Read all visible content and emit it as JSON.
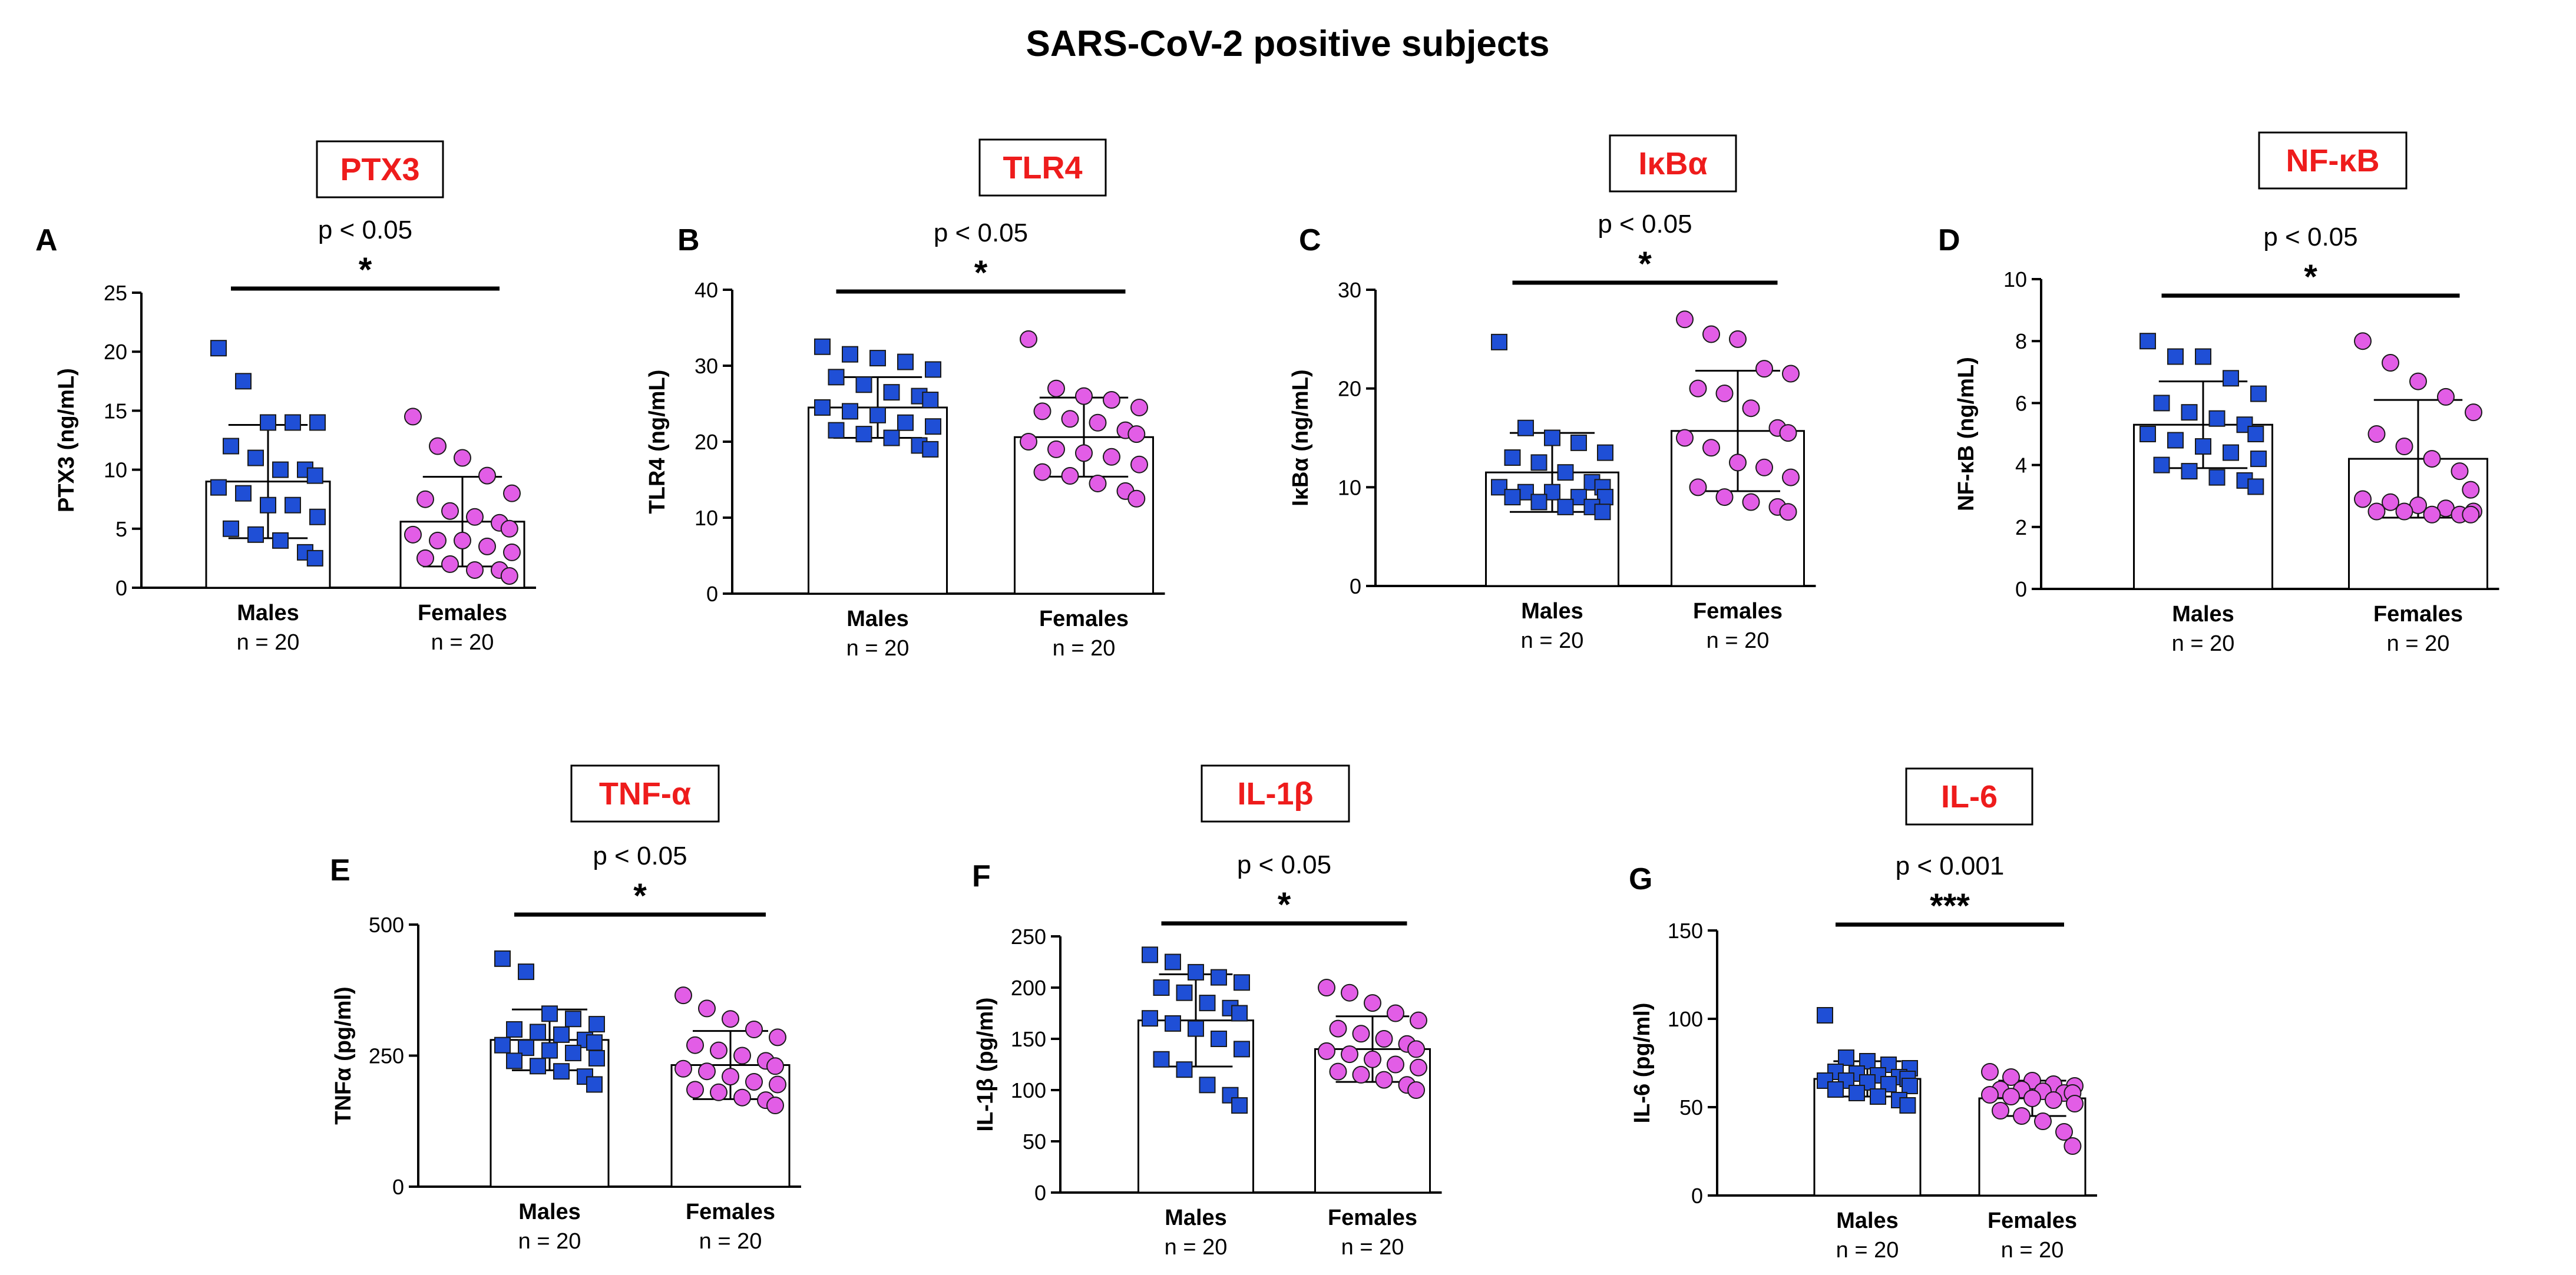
{
  "figure_title": "SARS-CoV-2 positive subjects",
  "colors": {
    "title_text": "#ee1c1c",
    "males_fill": "#1f4fd6",
    "females_fill": "#e25de6",
    "marker_edge": "#1a1a1a",
    "axis": "#000000"
  },
  "chart_data": [
    {
      "panel": "A",
      "type": "bar",
      "title": "PTX3",
      "ylabel": "PTX3 (ng/mL)",
      "ylim": [
        0,
        25
      ],
      "ticks": [
        0,
        5,
        10,
        15,
        20,
        25
      ],
      "categories": [
        "Males",
        "Females"
      ],
      "n_labels": [
        "n = 20",
        "n = 20"
      ],
      "means": [
        9.0,
        5.6
      ],
      "sd": [
        4.8,
        3.8
      ],
      "points": [
        [
          20.3,
          17.5,
          14.0,
          14.0,
          14.0,
          12.0,
          11.0,
          10.0,
          10.0,
          9.5,
          8.5,
          8.0,
          7.0,
          7.0,
          6.0,
          5.0,
          4.5,
          4.0,
          3.0,
          2.5
        ],
        [
          14.5,
          12.0,
          11.0,
          9.5,
          8.0,
          7.5,
          6.5,
          6.0,
          5.5,
          5.0,
          4.5,
          4.0,
          4.0,
          3.5,
          3.0,
          2.5,
          2.0,
          1.5,
          1.5,
          1.0
        ]
      ],
      "p_text": "p < 0.05",
      "stars": "*"
    },
    {
      "panel": "B",
      "type": "bar",
      "title": "TLR4",
      "ylabel": "TLR4 (ng/mL)",
      "ylim": [
        0,
        40
      ],
      "ticks": [
        0,
        10,
        20,
        30,
        40
      ],
      "categories": [
        "Males",
        "Females"
      ],
      "n_labels": [
        "n = 20",
        "n = 20"
      ],
      "means": [
        24.5,
        20.6
      ],
      "sd": [
        4.0,
        5.2
      ],
      "points": [
        [
          32.5,
          31.5,
          31.0,
          30.5,
          29.5,
          28.5,
          27.5,
          26.5,
          26.0,
          25.5,
          24.5,
          24.0,
          23.5,
          22.5,
          22.0,
          21.5,
          21.0,
          20.5,
          19.5,
          19.0
        ],
        [
          33.5,
          27.0,
          26.0,
          25.5,
          24.5,
          24.0,
          23.0,
          22.5,
          21.5,
          21.0,
          20.0,
          19.0,
          18.5,
          18.0,
          17.0,
          16.0,
          15.5,
          14.5,
          13.5,
          12.5
        ]
      ],
      "p_text": "p < 0.05",
      "stars": "*"
    },
    {
      "panel": "C",
      "type": "bar",
      "title": "IκBα",
      "ylabel": "IκBα (ng/mL)",
      "ylim": [
        0,
        30
      ],
      "ticks": [
        0,
        10,
        20,
        30
      ],
      "categories": [
        "Males",
        "Females"
      ],
      "n_labels": [
        "n = 20",
        "n = 20"
      ],
      "means": [
        11.5,
        15.7
      ],
      "sd": [
        4.0,
        6.1
      ],
      "points": [
        [
          24.7,
          16.0,
          15.0,
          14.5,
          13.5,
          13.0,
          12.5,
          11.5,
          10.5,
          10.0,
          10.0,
          9.5,
          9.5,
          9.0,
          9.0,
          9.0,
          8.5,
          8.0,
          8.0,
          7.5
        ],
        [
          27.0,
          25.5,
          25.0,
          22.0,
          21.5,
          20.0,
          19.5,
          18.0,
          16.0,
          15.5,
          15.0,
          14.0,
          12.5,
          12.0,
          11.0,
          10.0,
          9.0,
          8.5,
          8.0,
          7.5
        ]
      ],
      "p_text": "p < 0.05",
      "stars": "*"
    },
    {
      "panel": "D",
      "type": "bar",
      "title": "NF-κB",
      "ylabel": "NF-κB (ng/mL)",
      "ylim": [
        0,
        10
      ],
      "ticks": [
        0,
        2,
        4,
        6,
        8,
        10
      ],
      "categories": [
        "Males",
        "Females"
      ],
      "n_labels": [
        "n = 20",
        "n = 20"
      ],
      "means": [
        5.3,
        4.2
      ],
      "sd": [
        1.4,
        1.9
      ],
      "points": [
        [
          8.0,
          7.5,
          7.5,
          6.8,
          6.3,
          6.0,
          5.7,
          5.5,
          5.3,
          5.0,
          5.0,
          4.8,
          4.6,
          4.4,
          4.2,
          4.0,
          3.8,
          3.6,
          3.5,
          3.3
        ],
        [
          8.0,
          7.3,
          6.7,
          6.2,
          5.7,
          5.0,
          4.6,
          4.2,
          3.8,
          3.2,
          2.9,
          2.8,
          2.7,
          2.6,
          2.5,
          2.5,
          2.5,
          2.4,
          2.4,
          2.4
        ]
      ],
      "p_text": "p < 0.05",
      "stars": "*"
    },
    {
      "panel": "E",
      "type": "bar",
      "title": "TNF-α",
      "ylabel": "TNFα  (pg/ml)",
      "ylim": [
        0,
        500
      ],
      "ticks": [
        0,
        250,
        500
      ],
      "categories": [
        "Males",
        "Females"
      ],
      "n_labels": [
        "n = 20",
        "n = 20"
      ],
      "means": [
        280,
        232
      ],
      "sd": [
        58,
        65
      ],
      "points": [
        [
          435,
          410,
          330,
          320,
          310,
          300,
          295,
          290,
          280,
          275,
          270,
          265,
          260,
          255,
          245,
          240,
          230,
          220,
          210,
          195
        ],
        [
          365,
          340,
          320,
          300,
          285,
          270,
          260,
          250,
          240,
          230,
          225,
          220,
          210,
          200,
          195,
          185,
          180,
          170,
          165,
          155
        ]
      ],
      "p_text": "p < 0.05",
      "stars": "*"
    },
    {
      "panel": "F",
      "type": "bar",
      "title": "IL-1β",
      "ylabel": "IL-1β (pg/ml)",
      "ylim": [
        0,
        250
      ],
      "ticks": [
        0,
        50,
        100,
        150,
        200,
        250
      ],
      "categories": [
        "Males",
        "Females"
      ],
      "n_labels": [
        "n = 20",
        "n = 20"
      ],
      "means": [
        168,
        140
      ],
      "sd": [
        45,
        32
      ],
      "points": [
        [
          232,
          225,
          215,
          210,
          205,
          200,
          195,
          185,
          180,
          175,
          170,
          165,
          160,
          150,
          140,
          130,
          120,
          105,
          95,
          85
        ],
        [
          200,
          195,
          185,
          175,
          168,
          160,
          155,
          150,
          145,
          140,
          138,
          135,
          130,
          125,
          122,
          118,
          115,
          110,
          105,
          100
        ]
      ],
      "p_text": "p < 0.05",
      "stars": "*"
    },
    {
      "panel": "G",
      "type": "bar",
      "title": "IL-6",
      "ylabel": "IL-6 (pg/ml)",
      "ylim": [
        0,
        150
      ],
      "ticks": [
        0,
        50,
        100,
        150
      ],
      "categories": [
        "Males",
        "Females"
      ],
      "n_labels": [
        "n = 20",
        "n = 20"
      ],
      "means": [
        66,
        55
      ],
      "sd": [
        10,
        10
      ],
      "points": [
        [
          102,
          78,
          76,
          74,
          72,
          70,
          69,
          68,
          67,
          66,
          65,
          65,
          64,
          63,
          62,
          60,
          58,
          56,
          54,
          51
        ],
        [
          70,
          67,
          65,
          63,
          62,
          60,
          60,
          59,
          58,
          58,
          57,
          56,
          55,
          54,
          52,
          48,
          45,
          42,
          36,
          28
        ]
      ],
      "p_text": "p < 0.001",
      "stars": "***"
    }
  ]
}
